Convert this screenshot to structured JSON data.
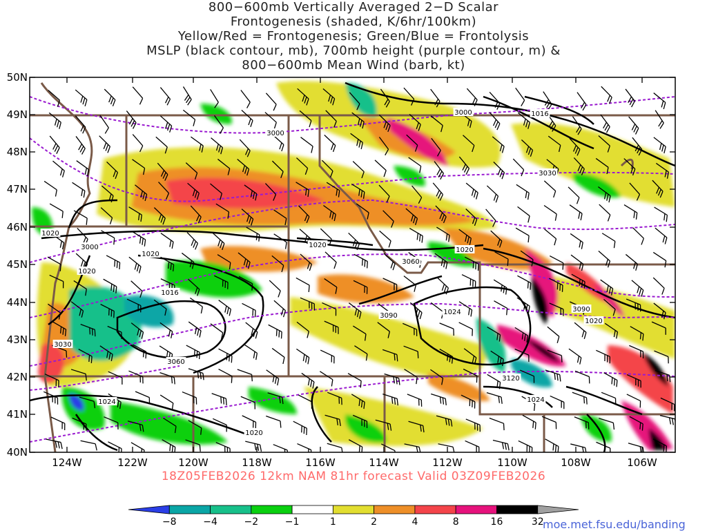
{
  "title_lines": [
    "800−600mb Vertically Averaged 2−D Scalar",
    "Frontogenesis (shaded, K/6hr/100km)",
    "Yellow/Red = Frontogenesis;  Green/Blue = Frontolysis",
    "MSLP (black contour, mb), 700mb height (purple contour, m) &",
    "800−600mb Mean Wind (barb, kt)"
  ],
  "footer": "18Z05FEB2026 12km NAM 81hr forecast Valid 03Z09FEB2026",
  "credit": "moe.met.fsu.edu/banding",
  "lon_labels": [
    "124W",
    "122W",
    "120W",
    "118W",
    "116W",
    "114W",
    "112W",
    "110W",
    "108W",
    "106W"
  ],
  "lat_labels": [
    "40N",
    "41N",
    "42N",
    "43N",
    "44N",
    "45N",
    "46N",
    "47N",
    "48N",
    "49N",
    "50N"
  ],
  "mslp_labels": [
    "1020",
    "1020",
    "1016",
    "1020",
    "1020",
    "1024",
    "1016",
    "1020",
    "1024",
    "1020",
    "1020",
    "1024"
  ],
  "height_labels": [
    "3000",
    "3000",
    "3030",
    "3060",
    "3060",
    "3090",
    "3120",
    "3090",
    "3000",
    "3030"
  ],
  "colorbar": {
    "ticks": [
      "−8",
      "−4",
      "−2",
      "−1",
      "1",
      "2",
      "4",
      "8",
      "16",
      "32"
    ],
    "colors": [
      "#2a3ee6",
      "#0aa6a6",
      "#17c08a",
      "#0ad010",
      "#ffffff",
      "#e2de30",
      "#ee8f28",
      "#f4444a",
      "#e6127c",
      "#000000",
      "#a0a0a0"
    ]
  },
  "colors": {
    "mslp": "#000000",
    "height": "#9a1ad0",
    "borders": "#7a5a48",
    "wind": "#000000"
  }
}
